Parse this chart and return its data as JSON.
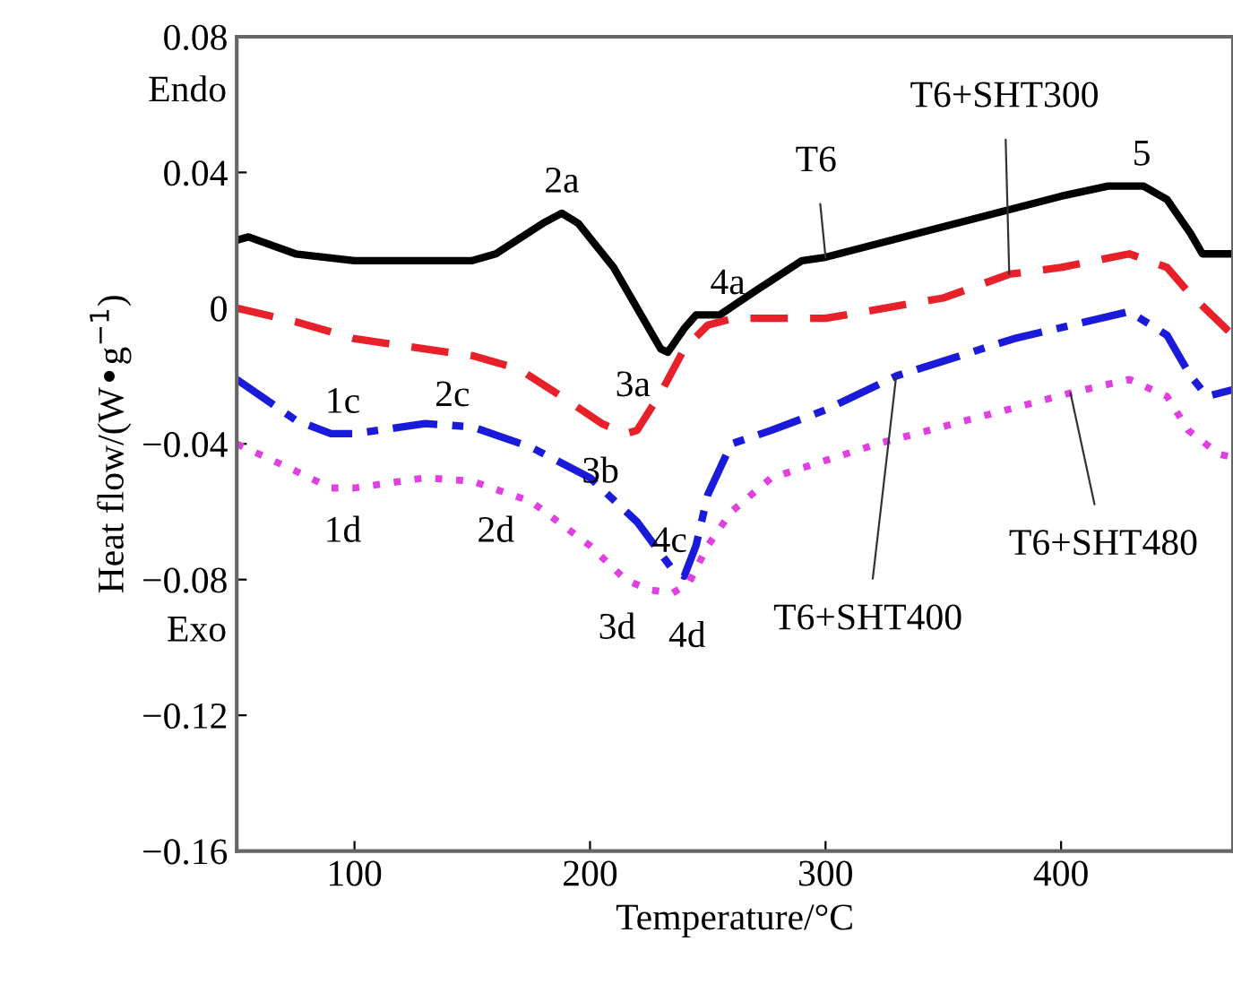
{
  "chart_data": {
    "type": "line",
    "xlabel": "Temperature/°C",
    "ylabel": "Heat flow/(W•g$^{−1}$)",
    "xlim": [
      50,
      473
    ],
    "ylim": [
      -0.16,
      0.08
    ],
    "xticks": [
      100,
      200,
      300,
      400
    ],
    "yticks": [
      {
        "value": -0.16,
        "label": "−0.16"
      },
      {
        "value": -0.12,
        "label": "−0.12"
      },
      {
        "value": -0.08,
        "label": "−0.08"
      },
      {
        "value": -0.04,
        "label": "−0.04"
      },
      0,
      0.04,
      0.08
    ],
    "grid": false,
    "legend": false,
    "series": [
      {
        "name": "T6",
        "color": "#000000",
        "line_style": "solid",
        "x": [
          50,
          55,
          75,
          100,
          150,
          160,
          180,
          188,
          195,
          210,
          230,
          233,
          240,
          245,
          255,
          270,
          290,
          300,
          350,
          400,
          420,
          435,
          445,
          455,
          460,
          473
        ],
        "values": [
          0.02,
          0.021,
          0.016,
          0.014,
          0.014,
          0.016,
          0.025,
          0.028,
          0.025,
          0.012,
          -0.012,
          -0.013,
          -0.006,
          -0.002,
          -0.002,
          0.005,
          0.014,
          0.015,
          0.024,
          0.033,
          0.036,
          0.036,
          0.032,
          0.022,
          0.016,
          0.016
        ]
      },
      {
        "name": "T6+SHT300",
        "color": "#e8202a",
        "line_style": "dashed",
        "x": [
          50,
          75,
          100,
          150,
          170,
          190,
          205,
          215,
          220,
          230,
          240,
          250,
          261,
          300,
          350,
          378,
          400,
          429,
          445,
          455,
          467,
          473
        ],
        "values": [
          0,
          -0.004,
          -0.009,
          -0.014,
          -0.018,
          -0.027,
          -0.034,
          -0.037,
          -0.036,
          -0.025,
          -0.012,
          -0.005,
          -0.003,
          -0.003,
          0.003,
          0.01,
          0.012,
          0.016,
          0.012,
          0.004,
          -0.004,
          -0.008
        ]
      },
      {
        "name": "T6+SHT400",
        "color": "#1a1adb",
        "line_style": "dashdot",
        "x": [
          50,
          75,
          90,
          100,
          130,
          150,
          175,
          200,
          220,
          235,
          240,
          245,
          250,
          260,
          277,
          300,
          330,
          380,
          429,
          445,
          455,
          462,
          473
        ],
        "values": [
          -0.021,
          -0.033,
          -0.037,
          -0.037,
          -0.034,
          -0.035,
          -0.041,
          -0.05,
          -0.063,
          -0.077,
          -0.079,
          -0.07,
          -0.055,
          -0.04,
          -0.036,
          -0.03,
          -0.02,
          -0.009,
          -0.001,
          -0.008,
          -0.02,
          -0.026,
          -0.024
        ]
      },
      {
        "name": "T6+SHT480",
        "color": "#e040e0",
        "line_style": "dotted",
        "x": [
          50,
          75,
          90,
          100,
          130,
          150,
          175,
          200,
          215,
          225,
          235,
          242,
          250,
          260,
          277,
          322,
          404,
          429,
          445,
          454,
          467,
          473
        ],
        "values": [
          -0.04,
          -0.048,
          -0.053,
          -0.053,
          -0.05,
          -0.051,
          -0.057,
          -0.07,
          -0.08,
          -0.083,
          -0.084,
          -0.081,
          -0.07,
          -0.06,
          -0.05,
          -0.04,
          -0.025,
          -0.021,
          -0.026,
          -0.036,
          -0.043,
          -0.044
        ]
      }
    ],
    "annotations": [
      {
        "text": "2a",
        "x": 188,
        "y": 0.028
      },
      {
        "text": "3a",
        "x": 233,
        "y": -0.013
      },
      {
        "text": "4a",
        "x": 250,
        "y": -0.002
      },
      {
        "text": "5",
        "x": 430,
        "y": 0.036
      },
      {
        "text": "1c",
        "x": 95,
        "y": -0.037
      },
      {
        "text": "2c",
        "x": 150,
        "y": -0.035
      },
      {
        "text": "3b",
        "x": 215,
        "y": -0.037
      },
      {
        "text": "4c",
        "x": 238,
        "y": -0.078
      },
      {
        "text": "1d",
        "x": 95,
        "y": -0.053
      },
      {
        "text": "2d",
        "x": 160,
        "y": -0.053
      },
      {
        "text": "3d",
        "x": 222,
        "y": -0.083
      },
      {
        "text": "4d",
        "x": 237,
        "y": -0.084
      },
      "Endo",
      "Exo"
    ]
  }
}
